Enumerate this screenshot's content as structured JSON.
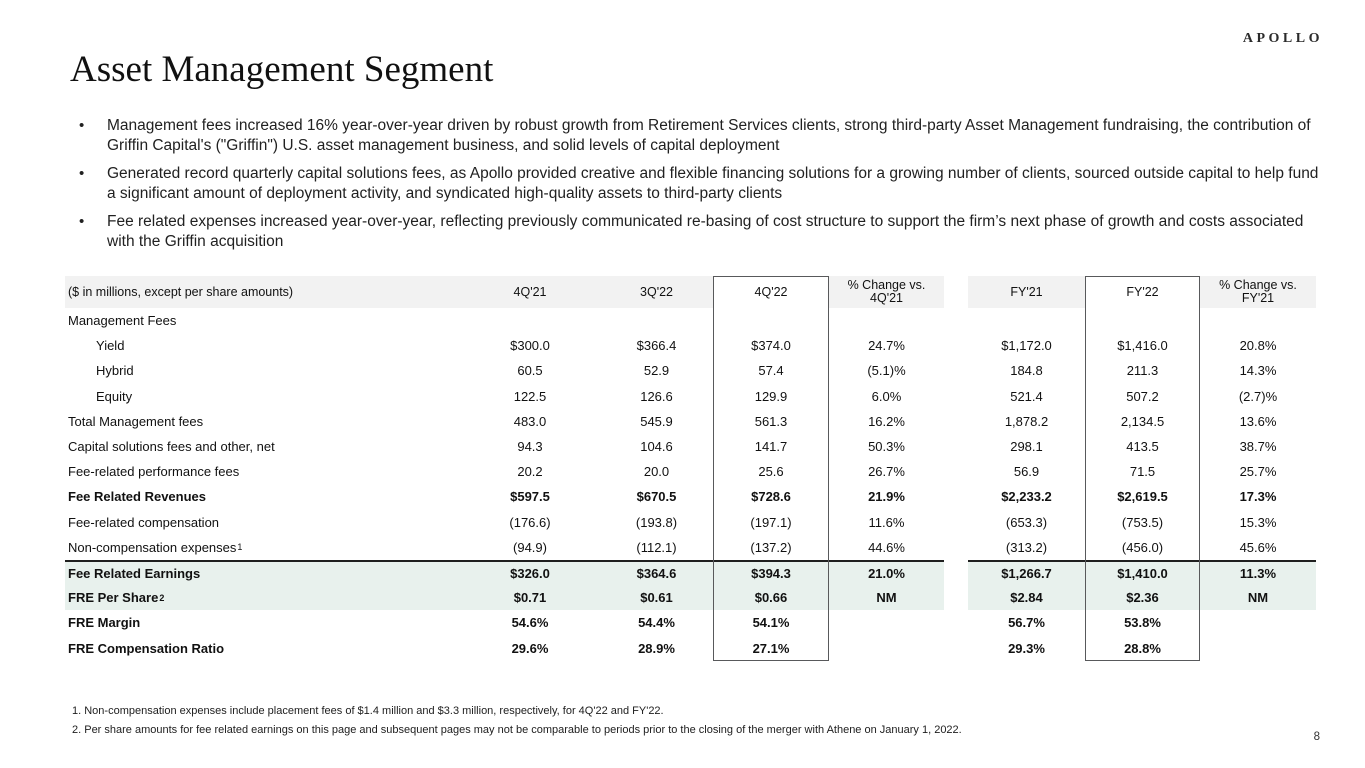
{
  "logo": "APOLLO",
  "title": "Asset Management Segment",
  "page_number": "8",
  "bullets": [
    "Management fees increased 16% year-over-year driven by robust growth from Retirement Services clients, strong third-party Asset Management fundraising, the contribution of Griffin Capital's (\"Griffin\") U.S. asset management business, and solid levels of capital deployment",
    "Generated record quarterly capital solutions fees, as Apollo provided creative and flexible financing solutions for a growing number of clients, sourced outside capital to help fund a significant amount of deployment activity, and syndicated high-quality assets to third-party clients",
    "Fee related expenses increased year-over-year, reflecting previously communicated re-basing of cost structure to support the firm’s next phase of growth and costs associated with the Griffin acquisition"
  ],
  "colors": {
    "header_bg": "#f2f2f2",
    "highlight_bg": "#e8f1ed",
    "box_border": "#58595b",
    "rule": "#1f1f1f"
  },
  "chart_data": {
    "type": "table",
    "title": "Asset Management Segment financials",
    "unit_label": "($ in millions, except per share amounts)",
    "columns": [
      "4Q'21",
      "3Q'22",
      "4Q'22",
      "% Change vs. 4Q'21",
      "FY'21",
      "FY'22",
      "% Change vs. FY'21"
    ],
    "boxed_columns": [
      "4Q'22",
      "FY'22"
    ],
    "rows": [
      {
        "label": "Management Fees",
        "style": "section",
        "values": [
          "",
          "",
          "",
          "",
          "",
          "",
          ""
        ]
      },
      {
        "label": "Yield",
        "style": "indent",
        "values": [
          "$300.0",
          "$366.4",
          "$374.0",
          "24.7%",
          "$1,172.0",
          "$1,416.0",
          "20.8%"
        ]
      },
      {
        "label": "Hybrid",
        "style": "indent",
        "values": [
          "60.5",
          "52.9",
          "57.4",
          "(5.1)%",
          "184.8",
          "211.3",
          "14.3%"
        ]
      },
      {
        "label": "Equity",
        "style": "indent",
        "values": [
          "122.5",
          "126.6",
          "129.9",
          "6.0%",
          "521.4",
          "507.2",
          "(2.7)%"
        ]
      },
      {
        "label": "Total Management fees",
        "style": "",
        "values": [
          "483.0",
          "545.9",
          "561.3",
          "16.2%",
          "1,878.2",
          "2,134.5",
          "13.6%"
        ]
      },
      {
        "label": "Capital solutions fees and other, net",
        "style": "",
        "values": [
          "94.3",
          "104.6",
          "141.7",
          "50.3%",
          "298.1",
          "413.5",
          "38.7%"
        ]
      },
      {
        "label": "Fee-related performance fees",
        "style": "",
        "values": [
          "20.2",
          "20.0",
          "25.6",
          "26.7%",
          "56.9",
          "71.5",
          "25.7%"
        ]
      },
      {
        "label": "Fee Related Revenues",
        "style": "bold",
        "values": [
          "$597.5",
          "$670.5",
          "$728.6",
          "21.9%",
          "$2,233.2",
          "$2,619.5",
          "17.3%"
        ]
      },
      {
        "label": "Fee-related compensation",
        "style": "",
        "values": [
          "(176.6)",
          "(193.8)",
          "(197.1)",
          "11.6%",
          "(653.3)",
          "(753.5)",
          "15.3%"
        ]
      },
      {
        "label": "Non-compensation expenses",
        "sup": "1",
        "style": "",
        "values": [
          "(94.9)",
          "(112.1)",
          "(137.2)",
          "44.6%",
          "(313.2)",
          "(456.0)",
          "45.6%"
        ]
      },
      {
        "label": "Fee Related Earnings",
        "style": "bold hl topline",
        "values": [
          "$326.0",
          "$364.6",
          "$394.3",
          "21.0%",
          "$1,266.7",
          "$1,410.0",
          "11.3%"
        ]
      },
      {
        "label": "FRE Per Share",
        "sup": "2",
        "style": "bold hl",
        "values": [
          "$0.71",
          "$0.61",
          "$0.66",
          "NM",
          "$2.84",
          "$2.36",
          "NM"
        ]
      },
      {
        "label": "FRE Margin",
        "style": "bold",
        "values": [
          "54.6%",
          "54.4%",
          "54.1%",
          "",
          "56.7%",
          "53.8%",
          ""
        ]
      },
      {
        "label": "FRE Compensation Ratio",
        "style": "bold",
        "values": [
          "29.6%",
          "28.9%",
          "27.1%",
          "",
          "29.3%",
          "28.8%",
          ""
        ]
      }
    ]
  },
  "footnotes": [
    "1. Non-compensation expenses include placement fees of $1.4 million and $3.3 million, respectively, for 4Q'22 and FY'22.",
    "2. Per share amounts for fee related earnings on this page and subsequent pages may not be comparable to periods prior to the closing of the merger with Athene on January 1, 2022."
  ]
}
